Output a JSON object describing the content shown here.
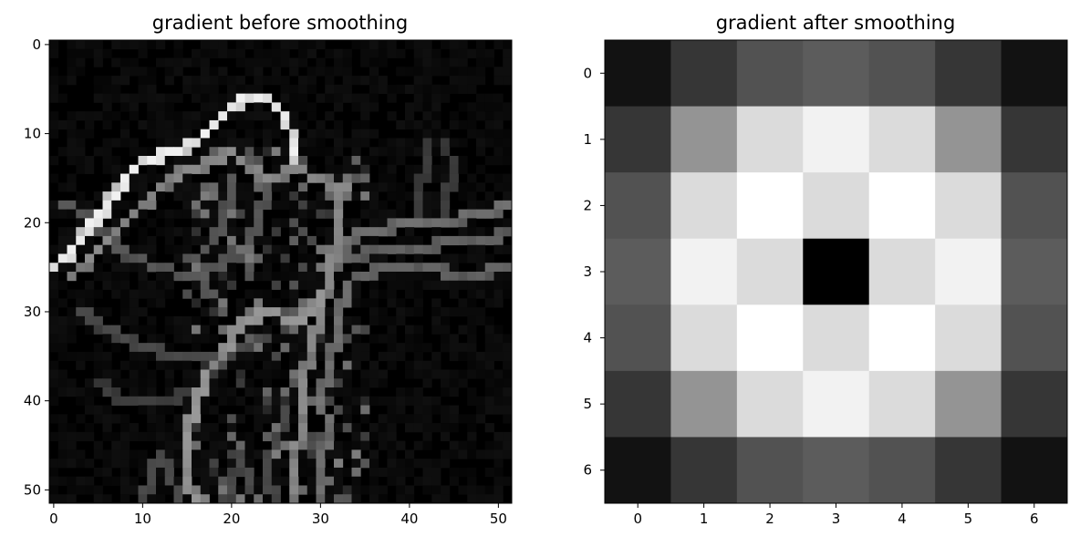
{
  "chart_data": [
    {
      "type": "heatmap",
      "title": "gradient before smoothing",
      "colormap": "gray",
      "shape": [
        52,
        52
      ],
      "xlim": [
        -0.5,
        51.5
      ],
      "ylim": [
        51.5,
        -0.5
      ],
      "xticks": [
        0,
        10,
        20,
        30,
        40,
        50
      ],
      "yticks": [
        0,
        10,
        20,
        30,
        40,
        50
      ],
      "image": "gradient-magnitude edge image of a figure (bright curved outlines on a black background)"
    },
    {
      "type": "heatmap",
      "title": "gradient after smoothing",
      "colormap": "gray",
      "xticks": [
        0,
        1,
        2,
        3,
        4,
        5,
        6
      ],
      "yticks": [
        0,
        1,
        2,
        3,
        4,
        5,
        6
      ],
      "values": [
        [
          0.07,
          0.21,
          0.32,
          0.36,
          0.32,
          0.21,
          0.07
        ],
        [
          0.21,
          0.58,
          0.86,
          0.95,
          0.86,
          0.58,
          0.21
        ],
        [
          0.32,
          0.86,
          1.0,
          0.86,
          1.0,
          0.86,
          0.32
        ],
        [
          0.36,
          0.95,
          0.86,
          0.0,
          0.86,
          0.95,
          0.36
        ],
        [
          0.32,
          0.86,
          1.0,
          0.86,
          1.0,
          0.86,
          0.32
        ],
        [
          0.21,
          0.58,
          0.86,
          0.95,
          0.86,
          0.58,
          0.21
        ],
        [
          0.07,
          0.21,
          0.32,
          0.36,
          0.32,
          0.21,
          0.07
        ]
      ]
    }
  ]
}
